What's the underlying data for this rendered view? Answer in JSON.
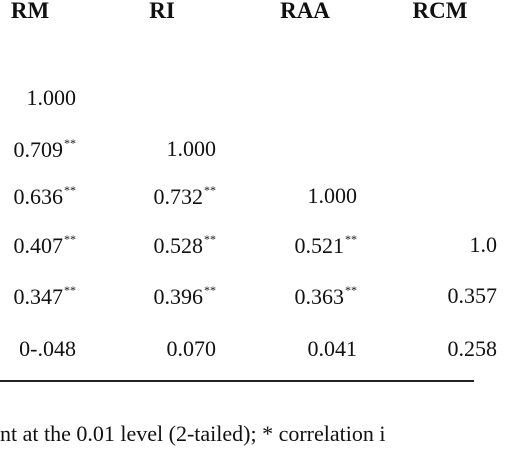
{
  "table": {
    "header": [
      "RM",
      "RI",
      "RAA",
      "RCM"
    ],
    "rows": [
      [
        {
          "text": "1.000"
        }
      ],
      [
        {
          "text": "0.709",
          "sup": "**"
        },
        {
          "text": "1.000"
        }
      ],
      [
        {
          "text": "0.636",
          "sup": "**"
        },
        {
          "text": "0.732",
          "sup": "**"
        },
        {
          "text": "1.000"
        }
      ],
      [
        {
          "text": "0.407",
          "sup": "**"
        },
        {
          "text": "0.528",
          "sup": "**"
        },
        {
          "text": "0.521",
          "sup": "**"
        },
        {
          "text": "1.0"
        }
      ],
      [
        {
          "text": "0.347",
          "sup": "**"
        },
        {
          "text": "0.396",
          "sup": "**"
        },
        {
          "text": "0.363",
          "sup": "**"
        },
        {
          "text": "0.357"
        }
      ],
      [
        {
          "text": "0-.048"
        },
        {
          "text": "0.070"
        },
        {
          "text": "0.041"
        },
        {
          "text": "0.258"
        }
      ]
    ],
    "footnote": "nt at the 0.01 level (2-tailed); * correlation i"
  }
}
